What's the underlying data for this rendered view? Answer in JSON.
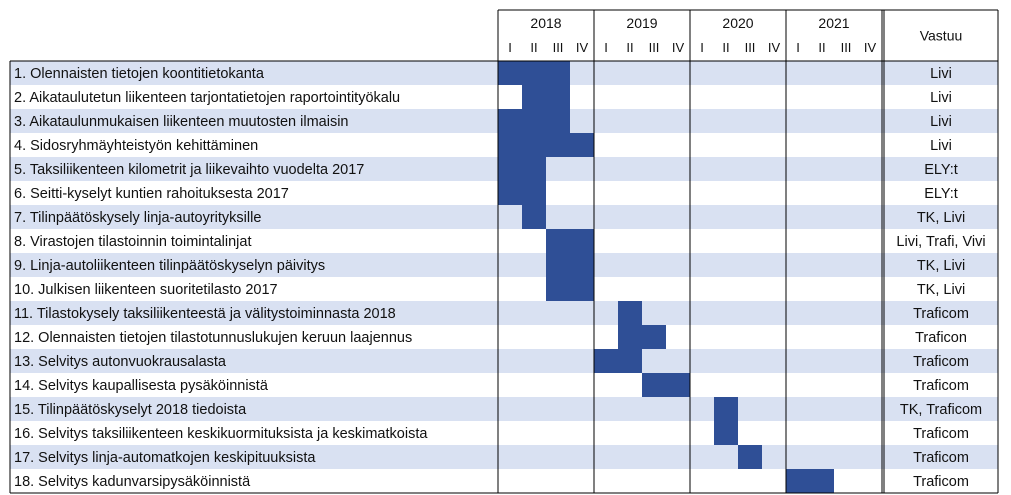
{
  "chart_data": {
    "type": "gantt",
    "years": [
      "2018",
      "2019",
      "2020",
      "2021"
    ],
    "quarter_labels": [
      "I",
      "II",
      "III",
      "IV"
    ],
    "responsible_header": "Vastuu",
    "colors": {
      "bar": "#2F4F96",
      "stripe": "#D9E1F2",
      "grid": "#000000"
    },
    "tasks": [
      {
        "label": "1. Olennaisten tietojen koontitietokanta",
        "responsible": "Livi",
        "start": 0,
        "end": 3
      },
      {
        "label": "2. Aikataulutetun liikenteen tarjontatietojen raportointityökalu",
        "responsible": "Livi",
        "start": 1,
        "end": 3
      },
      {
        "label": "3. Aikataulunmukaisen liikenteen muutosten ilmaisin",
        "responsible": "Livi",
        "start": 0,
        "end": 3
      },
      {
        "label": "4. Sidosryhmäyhteistyön kehittäminen",
        "responsible": "Livi",
        "start": 0,
        "end": 4
      },
      {
        "label": "5. Taksiliikenteen kilometrit ja liikevaihto vuodelta 2017",
        "responsible": "ELY:t",
        "start": 0,
        "end": 2
      },
      {
        "label": "6. Seitti-kyselyt kuntien rahoituksesta 2017",
        "responsible": "ELY:t",
        "start": 0,
        "end": 2
      },
      {
        "label": "7. Tilinpäätöskysely linja-autoyrityksille",
        "responsible": "TK, Livi",
        "start": 1,
        "end": 2
      },
      {
        "label": "8. Virastojen tilastoinnin toimintalinjat",
        "responsible": "Livi, Trafi, Vivi",
        "start": 2,
        "end": 4
      },
      {
        "label": "9. Linja-autoliikenteen tilinpäätöskyselyn päivitys",
        "responsible": "TK, Livi",
        "start": 2,
        "end": 4
      },
      {
        "label": "10. Julkisen liikenteen suoritetilasto 2017",
        "responsible": "TK, Livi",
        "start": 2,
        "end": 4
      },
      {
        "label": "11. Tilastokysely taksiliikenteestä ja välitystoiminnasta 2018",
        "responsible": "Traficom",
        "start": 5,
        "end": 6
      },
      {
        "label": "12. Olennaisten tietojen tilastotunnuslukujen keruun laajennus",
        "responsible": "Traficon",
        "start": 5,
        "end": 7
      },
      {
        "label": "13. Selvitys autonvuokrausalasta",
        "responsible": "Traficom",
        "start": 4,
        "end": 6
      },
      {
        "label": "14. Selvitys kaupallisesta pysäköinnistä",
        "responsible": "Traficom",
        "start": 6,
        "end": 8
      },
      {
        "label": "15. Tilinpäätöskyselyt 2018 tiedoista",
        "responsible": "TK, Traficom",
        "start": 9,
        "end": 10
      },
      {
        "label": "16. Selvitys taksiliikenteen keskikuormituksista ja keskimatkoista",
        "responsible": "Traficom",
        "start": 9,
        "end": 10
      },
      {
        "label": "17. Selvitys linja-automatkojen keskipituuksista",
        "responsible": "Traficom",
        "start": 10,
        "end": 11
      },
      {
        "label": "18. Selvitys kadunvarsipysäköinnistä",
        "responsible": "Traficom",
        "start": 12,
        "end": 14
      }
    ]
  }
}
